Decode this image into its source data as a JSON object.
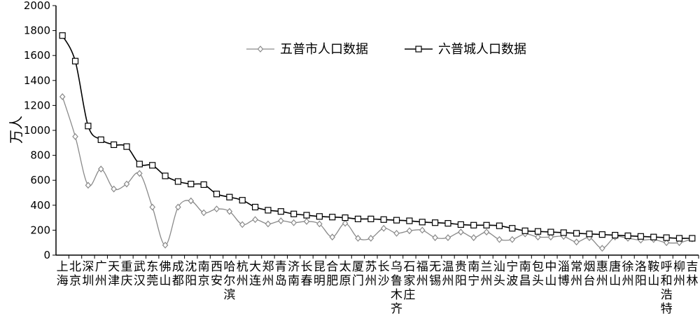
{
  "chart_data": {
    "type": "line",
    "ylabel": "万人",
    "ylim": [
      0,
      2000
    ],
    "yticks": [
      0,
      200,
      400,
      600,
      800,
      1000,
      1200,
      1400,
      1600,
      1800,
      2000
    ],
    "legend_position": "top-center",
    "grid": false,
    "categories": [
      "上海",
      "北京",
      "深圳",
      "广州",
      "天津",
      "重庆",
      "武汉",
      "东莞",
      "佛山",
      "成都",
      "沈阳",
      "南京",
      "西安",
      "哈尔滨",
      "杭州",
      "大连",
      "郑州",
      "青岛",
      "济南",
      "长春",
      "昆明",
      "合肥",
      "太原",
      "厦门",
      "苏州",
      "长沙",
      "乌鲁木齐",
      "石家庄",
      "福州",
      "无锡",
      "温州",
      "贵阳",
      "南宁",
      "兰州",
      "汕头",
      "宁波",
      "南昌",
      "包头",
      "中山",
      "淄博",
      "常州",
      "烟台",
      "惠州",
      "唐山",
      "徐州",
      "洛阳",
      "鞍山",
      "呼和浩特",
      "柳州",
      "吉林"
    ],
    "series": [
      {
        "name": "五普市人口数据",
        "color": "#8a8a8a",
        "marker": "diamond",
        "values": [
          1270,
          950,
          560,
          690,
          530,
          570,
          655,
          385,
          80,
          385,
          435,
          340,
          370,
          350,
          245,
          285,
          250,
          275,
          260,
          270,
          250,
          145,
          255,
          135,
          135,
          215,
          175,
          195,
          200,
          140,
          140,
          185,
          140,
          185,
          125,
          125,
          170,
          145,
          145,
          150,
          105,
          140,
          55,
          145,
          135,
          120,
          125,
          100,
          100,
          130
        ]
      },
      {
        "name": "六普城人口数据",
        "color": "#000000",
        "marker": "square",
        "values": [
          1760,
          1555,
          1035,
          925,
          885,
          870,
          730,
          720,
          635,
          590,
          570,
          565,
          490,
          465,
          440,
          385,
          360,
          350,
          330,
          320,
          310,
          305,
          300,
          290,
          290,
          285,
          280,
          275,
          265,
          260,
          255,
          245,
          240,
          240,
          235,
          215,
          195,
          190,
          185,
          180,
          175,
          170,
          165,
          160,
          155,
          150,
          145,
          140,
          135,
          135
        ]
      }
    ]
  }
}
